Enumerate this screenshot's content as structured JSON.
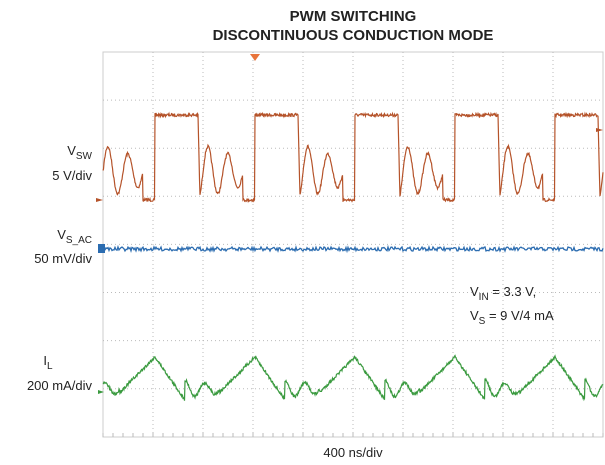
{
  "title": [
    "PWM SWITCHING",
    "DISCONTINUOUS CONDUCTION MODE"
  ],
  "channels": [
    {
      "symbol": "V",
      "subscript": "SW",
      "scale": "5 V/div"
    },
    {
      "symbol": "V",
      "subscript": "S_AC",
      "scale": "50 mV/div"
    },
    {
      "symbol": "I",
      "subscript": "L",
      "scale": "200 mA/div"
    }
  ],
  "annotation": [
    {
      "symbol": "V",
      "subscript": "IN",
      "text": " = 3.3 V,"
    },
    {
      "symbol": "V",
      "subscript": "S",
      "text": " = 9 V/4 mA"
    }
  ],
  "time_scale": "400 ns/div"
}
